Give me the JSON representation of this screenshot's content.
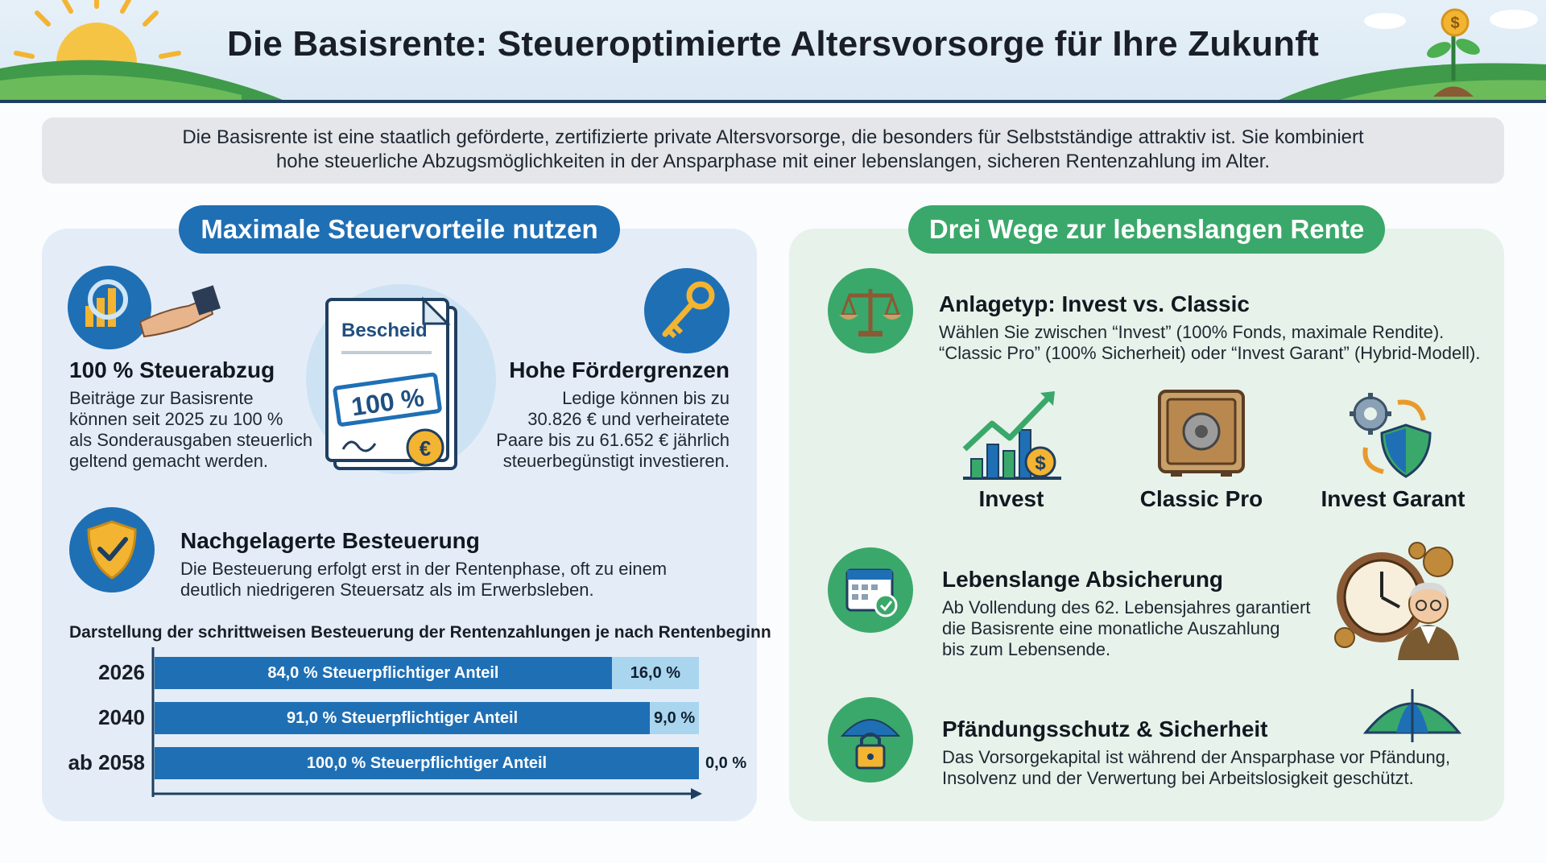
{
  "header": {
    "title": "Die Basisrente: Steueroptimierte Altersvorsorge für Ihre Zukunft"
  },
  "intro": {
    "line1": "Die Basisrente ist eine staatlich geförderte, zertifizierte private Altersvorsorge, die besonders für Selbstständige attraktiv ist. Sie kombiniert",
    "line2": "hohe steuerliche Abzugsmöglichkeiten in der Ansparphase mit einer lebenslangen, sicheren Rentenzahlung im Alter."
  },
  "left": {
    "pill": "Maximale Steuervorteile nutzen",
    "doc_label": "Bescheid",
    "doc_stamp": "100 %",
    "steuerabzug": {
      "title": "100 % Steuerabzug",
      "lines": [
        "Beiträge zur Basisrente",
        "können seit 2025 zu 100 %",
        "als Sonderausgaben steuerlich",
        "geltend gemacht werden."
      ]
    },
    "foerdergrenzen": {
      "title": "Hohe Fördergrenzen",
      "lines": [
        "Ledige können bis zu",
        "30.826 € und verheiratete",
        "Paare bis zu 61.652 € jährlich",
        "steuerbegünstigt investieren."
      ]
    },
    "besteuerung": {
      "title": "Nachgelagerte Besteuerung",
      "lines": [
        "Die Besteuerung erfolgt erst in der Rentenphase, oft zu einem",
        "deutlich niedrigeren Steuersatz als im Erwerbsleben."
      ]
    }
  },
  "chart_data": {
    "type": "bar",
    "title": "Darstellung der schrittweisen Besteuerung der Rentenzahlungen je nach Rentenbeginn",
    "categories": [
      "2026",
      "2040",
      "ab 2058"
    ],
    "series": [
      {
        "name": "Steuerpflichtiger Anteil",
        "values": [
          84.0,
          91.0,
          100.0
        ]
      },
      {
        "name": "",
        "values": [
          16.0,
          9.0,
          0.0
        ]
      }
    ],
    "labels_main": [
      "84,0 % Steuerpflichtiger Anteil",
      "91,0 % Steuerpflichtiger Anteil",
      "100,0 % Steuerpflichtiger Anteil"
    ],
    "labels_rest": [
      "16,0 %",
      "9,0 %",
      "0,0 %"
    ],
    "xlim": [
      0,
      100
    ],
    "colors": {
      "main": "#1f6fb5",
      "rest": "#a9d5ef"
    }
  },
  "right": {
    "pill": "Drei Wege zur lebenslangen Rente",
    "anlagetyp": {
      "title": "Anlagetyp: Invest vs. Classic",
      "lines": [
        "Wählen Sie zwischen “Invest” (100% Fonds, maximale Rendite).",
        "“Classic Pro” (100% Sicherheit) oder “Invest Garant” (Hybrid-Modell)."
      ]
    },
    "options": [
      {
        "label": "Invest",
        "icon": "growth-chart-icon"
      },
      {
        "label": "Classic Pro",
        "icon": "safe-icon"
      },
      {
        "label": "Invest Garant",
        "icon": "gear-shield-icon"
      }
    ],
    "absicherung": {
      "title": "Lebenslange Absicherung",
      "lines": [
        "Ab Vollendung des 62. Lebensjahres garantiert",
        "die Basisrente eine monatliche Auszahlung",
        "bis zum Lebensende."
      ]
    },
    "pfaendung": {
      "title": "Pfändungsschutz & Sicherheit",
      "lines": [
        "Das Vorsorgekapital ist während der Ansparphase vor Pfändung,",
        "Insolvenz und der Verwertung bei Arbeitslosigkeit geschützt."
      ]
    }
  },
  "colors": {
    "blue": "#1f6fb5",
    "green": "#3aa86a",
    "navy": "#1f3f60"
  }
}
